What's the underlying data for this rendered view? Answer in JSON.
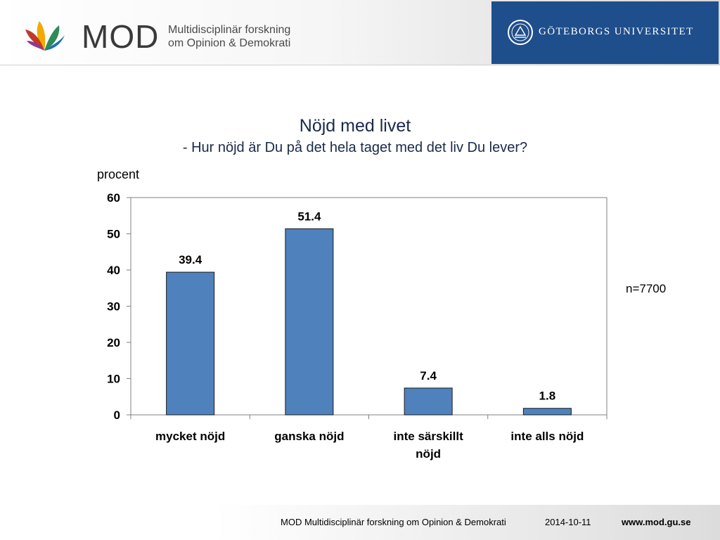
{
  "header": {
    "brand": "MOD",
    "tagline_line1": "Multidisciplinär forskning",
    "tagline_line2": "om Opinion & Demokrati",
    "university": "GÖTEBORGS UNIVERSITET",
    "university_color": "#1f4e8c"
  },
  "chart_data": {
    "type": "bar",
    "title": "Nöjd med livet",
    "subtitle": "- Hur nöjd är Du på det hela taget med det liv Du lever?",
    "ylabel": "procent",
    "categories": [
      [
        "mycket nöjd"
      ],
      [
        "ganska nöjd"
      ],
      [
        "inte särskillt",
        "nöjd"
      ],
      [
        "inte alls nöjd"
      ]
    ],
    "values": [
      39.4,
      51.4,
      7.4,
      1.8
    ],
    "value_labels": [
      "39.4",
      "51.4",
      "7.4",
      "1.8"
    ],
    "yticks": [
      "0",
      "10",
      "20",
      "30",
      "40",
      "50",
      "60"
    ],
    "ylim": [
      0,
      60
    ],
    "bar_color": "#4f81bd",
    "grid": false,
    "annotation": "n=7700"
  },
  "footer": {
    "org": "MOD Multidisciplinär forskning om Opinion & Demokrati",
    "date": "2014-10-11",
    "url": "www.mod.gu.se"
  }
}
